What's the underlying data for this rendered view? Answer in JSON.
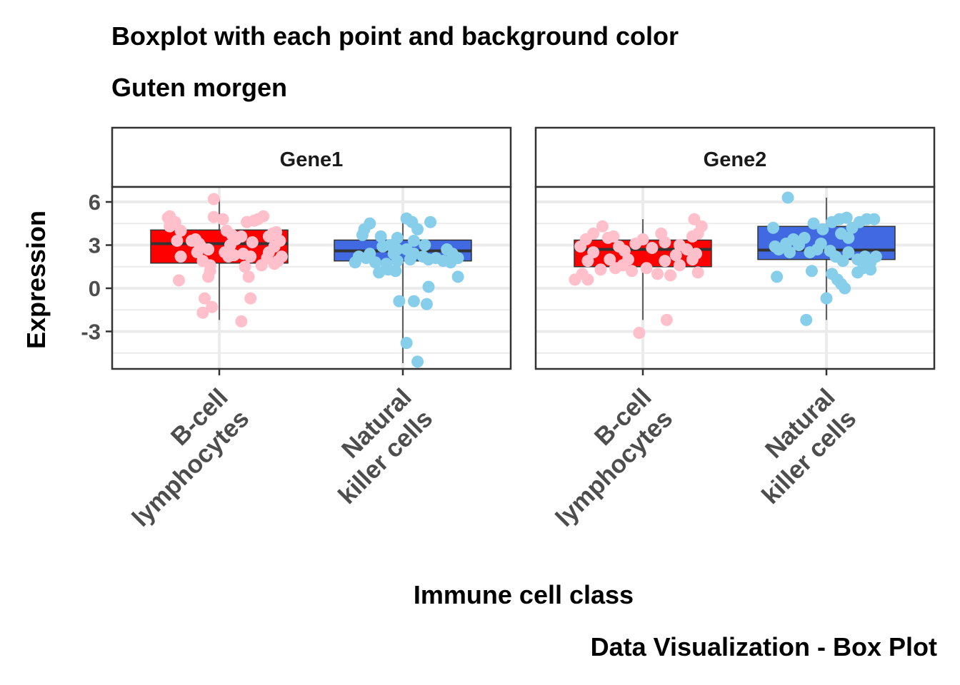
{
  "title": "Boxplot with each point and background color",
  "subtitle": "Guten morgen",
  "caption": "Data Visualization - Box Plot",
  "colors": {
    "bcell_box": "#ff0000",
    "nk_box": "#4169e1",
    "bcell_point": "#ffc0cb",
    "nk_point": "#87ceeb",
    "grid": "#ebebeb",
    "frame": "#333333",
    "axis_text": "#4d4d4d"
  },
  "chart_data": {
    "type": "box",
    "xlabel": "Immune cell class",
    "ylabel": "Expression",
    "ylim": [
      -5.3,
      7.0
    ],
    "yticks": [
      6,
      3,
      0,
      -3
    ],
    "ytick_labels": [
      "6",
      "3",
      "0",
      "-3"
    ],
    "grid": true,
    "categories": [
      {
        "key": "bcell",
        "lines": [
          "B-cell",
          "lymphocytes"
        ]
      },
      {
        "key": "nk",
        "lines": [
          "Natural",
          "killer cells"
        ]
      }
    ],
    "panels": [
      {
        "name": "Gene1",
        "boxes": [
          {
            "category": "bcell",
            "q1": 1.75,
            "median": 3.1,
            "q3": 4.05,
            "whisker_low": -2.2,
            "whisker_high": 6.2,
            "points": [
              [
                -0.03,
                6.2
              ],
              [
                -0.27,
                4.3
              ],
              [
                -0.28,
                4.9
              ],
              [
                -0.27,
                5.0
              ],
              [
                -0.24,
                4.6
              ],
              [
                -0.21,
                4.0
              ],
              [
                -0.23,
                3.3
              ],
              [
                -0.15,
                3.3
              ],
              [
                -0.13,
                3.4
              ],
              [
                -0.11,
                3.1
              ],
              [
                -0.1,
                2.9
              ],
              [
                -0.06,
                2.7
              ],
              [
                -0.21,
                2.2
              ],
              [
                -0.12,
                2.5
              ],
              [
                -0.09,
                1.9
              ],
              [
                -0.05,
                1.6
              ],
              [
                -0.05,
                1.2
              ],
              [
                -0.06,
                0.8
              ],
              [
                -0.22,
                0.55
              ],
              [
                -0.08,
                -0.7
              ],
              [
                -0.04,
                -1.3
              ],
              [
                -0.09,
                -1.7
              ],
              [
                0.12,
                -2.3
              ],
              [
                -0.03,
                4.95
              ],
              [
                0.02,
                4.8
              ],
              [
                0.04,
                4.0
              ],
              [
                0.07,
                3.7
              ],
              [
                0.09,
                3.4
              ],
              [
                0.06,
                3.0
              ],
              [
                0.03,
                2.5
              ],
              [
                0.05,
                2.2
              ],
              [
                0.13,
                2.4
              ],
              [
                0.17,
                2.2
              ],
              [
                0.16,
                0.8
              ],
              [
                0.17,
                -0.7
              ],
              [
                0.14,
                1.5
              ],
              [
                0.15,
                4.6
              ],
              [
                0.19,
                4.7
              ],
              [
                0.21,
                4.8
              ],
              [
                0.24,
                5.0
              ],
              [
                0.27,
                3.6
              ],
              [
                0.29,
                3.8
              ],
              [
                0.31,
                3.9
              ],
              [
                0.33,
                3.3
              ],
              [
                0.3,
                2.9
              ],
              [
                0.27,
                2.5
              ],
              [
                0.26,
                2.1
              ],
              [
                0.23,
                1.6
              ],
              [
                0.3,
                1.7
              ],
              [
                0.32,
                1.9
              ],
              [
                0.34,
                2.2
              ],
              [
                0.18,
                3.2
              ],
              [
                0.12,
                3.6
              ],
              [
                0.08,
                2.3
              ]
            ]
          },
          {
            "category": "nk",
            "q1": 1.9,
            "median": 2.6,
            "q3": 3.35,
            "whisker_low": -5.2,
            "whisker_high": 4.85,
            "points": [
              [
                0.02,
                4.85
              ],
              [
                0.05,
                4.6
              ],
              [
                0.15,
                4.6
              ],
              [
                -0.18,
                4.5
              ],
              [
                -0.21,
                4.1
              ],
              [
                -0.22,
                3.7
              ],
              [
                -0.12,
                3.6
              ],
              [
                -0.03,
                3.5
              ],
              [
                0.08,
                4.1
              ],
              [
                0.06,
                3.3
              ],
              [
                -0.11,
                2.9
              ],
              [
                -0.03,
                2.7
              ],
              [
                0.02,
                2.7
              ],
              [
                0.06,
                2.4
              ],
              [
                0.11,
                2.2
              ],
              [
                0.14,
                2.0
              ],
              [
                0.18,
                2.1
              ],
              [
                0.22,
                1.9
              ],
              [
                0.26,
                1.8
              ],
              [
                -0.24,
                2.2
              ],
              [
                -0.2,
                2.1
              ],
              [
                -0.15,
                1.8
              ],
              [
                -0.09,
                1.7
              ],
              [
                -0.03,
                1.9
              ],
              [
                -0.18,
                2.4
              ],
              [
                -0.26,
                1.8
              ],
              [
                -0.13,
                1.1
              ],
              [
                -0.08,
                1.3
              ],
              [
                -0.04,
                1.2
              ],
              [
                0.27,
                2.4
              ],
              [
                0.3,
                2.1
              ],
              [
                0.24,
                2.7
              ],
              [
                0.3,
                0.8
              ],
              [
                0.14,
                0.1
              ],
              [
                0.13,
                -1.1
              ],
              [
                0.06,
                -0.9
              ],
              [
                -0.02,
                -0.9
              ],
              [
                0.02,
                -3.8
              ],
              [
                0.08,
                -5.1
              ],
              [
                -0.07,
                3.0
              ],
              [
                0.12,
                3.0
              ],
              [
                0.04,
                2.0
              ],
              [
                -0.05,
                2.4
              ]
            ]
          }
        ]
      },
      {
        "name": "Gene2",
        "boxes": [
          {
            "category": "bcell",
            "q1": 1.5,
            "median": 2.7,
            "q3": 3.35,
            "whisker_low": -2.2,
            "whisker_high": 4.8,
            "points": [
              [
                -0.22,
                4.3
              ],
              [
                -0.27,
                3.8
              ],
              [
                -0.19,
                3.5
              ],
              [
                -0.16,
                3.6
              ],
              [
                -0.31,
                3.4
              ],
              [
                -0.34,
                2.9
              ],
              [
                -0.27,
                2.5
              ],
              [
                -0.3,
                1.9
              ],
              [
                -0.33,
                1.0
              ],
              [
                -0.37,
                0.6
              ],
              [
                -0.3,
                0.6
              ],
              [
                -0.23,
                1.3
              ],
              [
                -0.15,
                1.4
              ],
              [
                -0.11,
                1.6
              ],
              [
                -0.06,
                1.2
              ],
              [
                -0.08,
                2.0
              ],
              [
                -0.1,
                2.6
              ],
              [
                -0.04,
                3.1
              ],
              [
                0.0,
                3.4
              ],
              [
                -0.13,
                2.9
              ],
              [
                -0.02,
                -3.1
              ],
              [
                0.13,
                -2.2
              ],
              [
                0.08,
                1.0
              ],
              [
                0.02,
                1.4
              ],
              [
                0.12,
                1.9
              ],
              [
                0.2,
                3.0
              ],
              [
                0.27,
                3.6
              ],
              [
                0.3,
                3.8
              ],
              [
                0.32,
                4.3
              ],
              [
                0.28,
                4.8
              ],
              [
                0.24,
                2.7
              ],
              [
                0.29,
                2.4
              ],
              [
                0.27,
                2.0
              ],
              [
                0.15,
                0.9
              ],
              [
                0.2,
                1.6
              ],
              [
                0.3,
                1.1
              ],
              [
                0.1,
                3.8
              ],
              [
                0.12,
                3.2
              ],
              [
                0.18,
                2.3
              ],
              [
                -0.18,
                2.0
              ],
              [
                0.05,
                2.8
              ]
            ]
          },
          {
            "category": "nk",
            "q1": 2.0,
            "median": 2.65,
            "q3": 4.3,
            "whisker_low": -2.2,
            "whisker_high": 6.3,
            "points": [
              [
                -0.21,
                6.3
              ],
              [
                -0.29,
                4.2
              ],
              [
                -0.28,
                2.9
              ],
              [
                -0.22,
                3.1
              ],
              [
                -0.18,
                3.4
              ],
              [
                -0.12,
                3.5
              ],
              [
                -0.07,
                4.5
              ],
              [
                -0.02,
                4.1
              ],
              [
                0.03,
                4.6
              ],
              [
                0.07,
                4.8
              ],
              [
                0.11,
                4.9
              ],
              [
                0.14,
                4.2
              ],
              [
                0.18,
                4.6
              ],
              [
                0.22,
                4.8
              ],
              [
                0.26,
                4.8
              ],
              [
                -0.26,
                2.7
              ],
              [
                -0.2,
                2.5
              ],
              [
                -0.15,
                3.0
              ],
              [
                -0.09,
                2.5
              ],
              [
                -0.03,
                3.1
              ],
              [
                0.02,
                2.6
              ],
              [
                0.05,
                2.2
              ],
              [
                0.09,
                1.9
              ],
              [
                0.12,
                2.5
              ],
              [
                0.17,
                2.0
              ],
              [
                0.21,
                2.2
              ],
              [
                0.24,
                1.8
              ],
              [
                0.27,
                2.2
              ],
              [
                0.2,
                1.4
              ],
              [
                0.17,
                1.1
              ],
              [
                0.03,
                1.0
              ],
              [
                0.06,
                0.6
              ],
              [
                0.08,
                0.3
              ],
              [
                0.1,
                0.0
              ],
              [
                -0.08,
                1.2
              ],
              [
                0.0,
                -0.7
              ],
              [
                -0.11,
                -2.2
              ],
              [
                -0.27,
                0.8
              ],
              [
                0.24,
                1.3
              ],
              [
                0.12,
                3.5
              ],
              [
                -0.05,
                2.7
              ],
              [
                0.08,
                3.8
              ]
            ]
          }
        ]
      }
    ]
  }
}
